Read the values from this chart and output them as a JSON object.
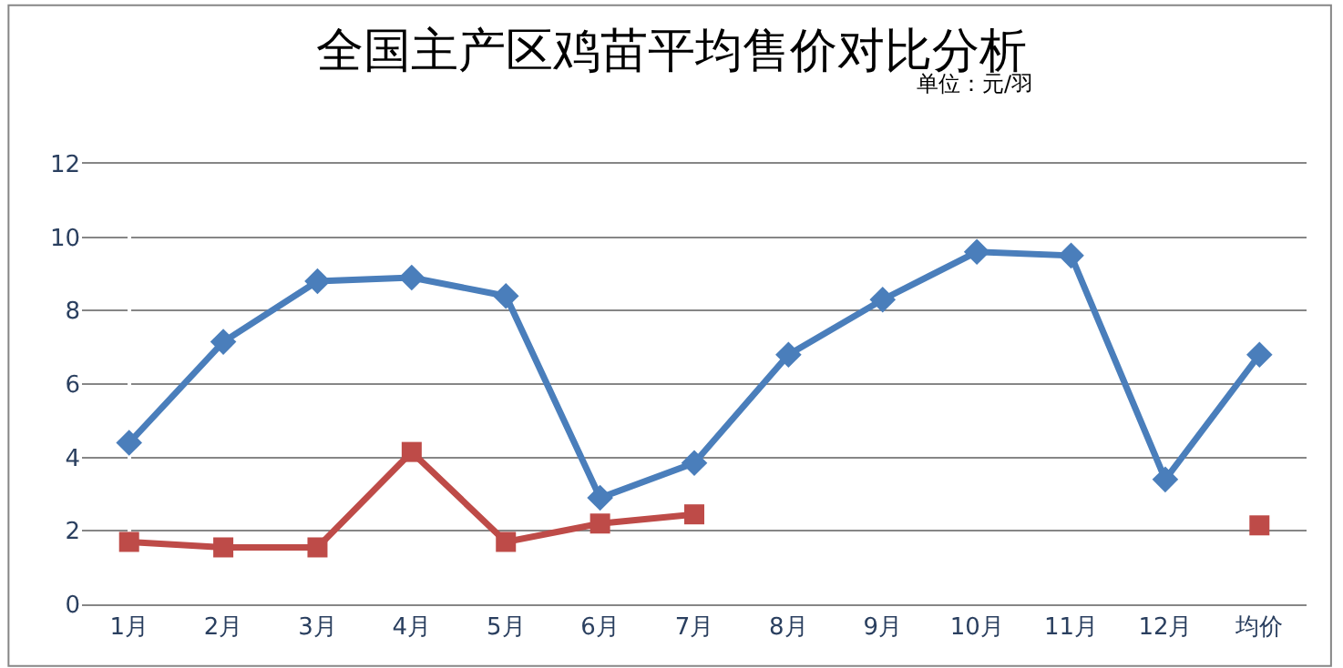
{
  "chart_data": {
    "type": "line",
    "title": "全国主产区鸡苗平均售价对比分析",
    "annotations": [
      "单位：元/羽"
    ],
    "categories": [
      "1月",
      "2月",
      "3月",
      "4月",
      "5月",
      "6月",
      "7月",
      "8月",
      "9月",
      "10月",
      "11月",
      "12月",
      "均价"
    ],
    "series": [
      {
        "color": "#4a7ebb",
        "marker": "diamond",
        "values": [
          4.4,
          7.15,
          8.8,
          8.9,
          8.4,
          2.9,
          3.85,
          6.8,
          8.3,
          9.6,
          9.5,
          3.4,
          6.8
        ]
      },
      {
        "color": "#be4b48",
        "marker": "square",
        "values": [
          1.7,
          1.55,
          1.55,
          4.15,
          1.7,
          2.2,
          2.45,
          null,
          null,
          null,
          null,
          null,
          2.15
        ]
      }
    ],
    "ylim": [
      0,
      12
    ],
    "yticks": [
      0,
      2,
      4,
      6,
      8,
      10,
      12
    ],
    "grid": "y"
  }
}
